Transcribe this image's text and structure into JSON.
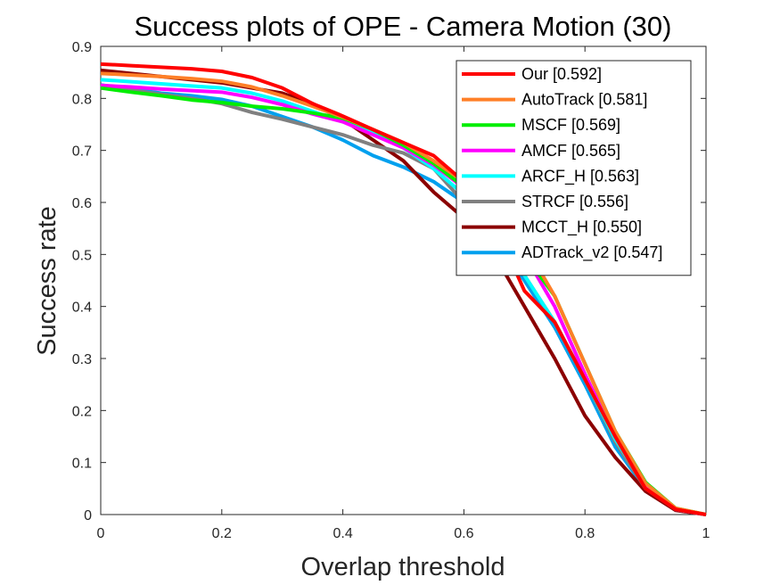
{
  "chart_data": {
    "type": "line",
    "title": "Success plots of OPE - Camera Motion (30)",
    "xlabel": "Overlap threshold",
    "ylabel": "Success rate",
    "xlim": [
      0,
      1
    ],
    "ylim": [
      0,
      0.9
    ],
    "xticks": [
      "0",
      "0.2",
      "0.4",
      "0.6",
      "0.8",
      "1"
    ],
    "yticks": [
      "0",
      "0.1",
      "0.2",
      "0.3",
      "0.4",
      "0.5",
      "0.6",
      "0.7",
      "0.8",
      "0.9"
    ],
    "legend_position": "top-right",
    "grid": false,
    "x": [
      0,
      0.05,
      0.1,
      0.15,
      0.2,
      0.25,
      0.3,
      0.35,
      0.4,
      0.45,
      0.5,
      0.55,
      0.6,
      0.65,
      0.7,
      0.75,
      0.8,
      0.85,
      0.9,
      0.95,
      1.0
    ],
    "series": [
      {
        "name": "Our [0.592]",
        "color": "#ff0000",
        "values": [
          0.866,
          0.863,
          0.86,
          0.857,
          0.852,
          0.84,
          0.82,
          0.79,
          0.766,
          0.74,
          0.715,
          0.69,
          0.64,
          0.56,
          0.43,
          0.37,
          0.26,
          0.15,
          0.05,
          0.01,
          0.0
        ]
      },
      {
        "name": "AutoTrack [0.581]",
        "color": "#ff7f27",
        "values": [
          0.848,
          0.845,
          0.842,
          0.838,
          0.833,
          0.822,
          0.805,
          0.785,
          0.764,
          0.74,
          0.715,
          0.68,
          0.64,
          0.58,
          0.52,
          0.42,
          0.29,
          0.16,
          0.06,
          0.012,
          0.0
        ]
      },
      {
        "name": "MSCF [0.569]",
        "color": "#00ee00",
        "values": [
          0.82,
          0.812,
          0.805,
          0.797,
          0.792,
          0.785,
          0.78,
          0.772,
          0.762,
          0.74,
          0.71,
          0.675,
          0.63,
          0.57,
          0.5,
          0.42,
          0.29,
          0.16,
          0.062,
          0.012,
          0.0
        ]
      },
      {
        "name": "AMCF [0.565]",
        "color": "#ff00ff",
        "values": [
          0.825,
          0.822,
          0.818,
          0.815,
          0.812,
          0.802,
          0.788,
          0.77,
          0.755,
          0.73,
          0.705,
          0.672,
          0.628,
          0.57,
          0.5,
          0.4,
          0.27,
          0.15,
          0.055,
          0.01,
          0.0
        ]
      },
      {
        "name": "ARCF_H [0.563]",
        "color": "#00ffff",
        "values": [
          0.836,
          0.832,
          0.828,
          0.824,
          0.82,
          0.81,
          0.795,
          0.775,
          0.755,
          0.735,
          0.705,
          0.665,
          0.615,
          0.545,
          0.46,
          0.37,
          0.26,
          0.145,
          0.054,
          0.01,
          0.0
        ]
      },
      {
        "name": "STRCF [0.556]",
        "color": "#808080",
        "values": [
          0.822,
          0.816,
          0.808,
          0.8,
          0.79,
          0.773,
          0.76,
          0.745,
          0.73,
          0.71,
          0.695,
          0.665,
          0.6,
          0.535,
          0.46,
          0.37,
          0.26,
          0.14,
          0.05,
          0.01,
          0.0
        ]
      },
      {
        "name": "MCCT_H [0.550]",
        "color": "#8b0000",
        "values": [
          0.854,
          0.848,
          0.842,
          0.836,
          0.83,
          0.82,
          0.81,
          0.79,
          0.76,
          0.72,
          0.68,
          0.62,
          0.57,
          0.5,
          0.4,
          0.3,
          0.19,
          0.11,
          0.045,
          0.008,
          0.0
        ]
      },
      {
        "name": "ADTrack_v2 [0.547]",
        "color": "#00a0ee",
        "values": [
          0.826,
          0.818,
          0.81,
          0.805,
          0.798,
          0.785,
          0.765,
          0.745,
          0.72,
          0.69,
          0.668,
          0.64,
          0.6,
          0.53,
          0.45,
          0.36,
          0.25,
          0.13,
          0.05,
          0.01,
          0.0
        ]
      }
    ]
  }
}
